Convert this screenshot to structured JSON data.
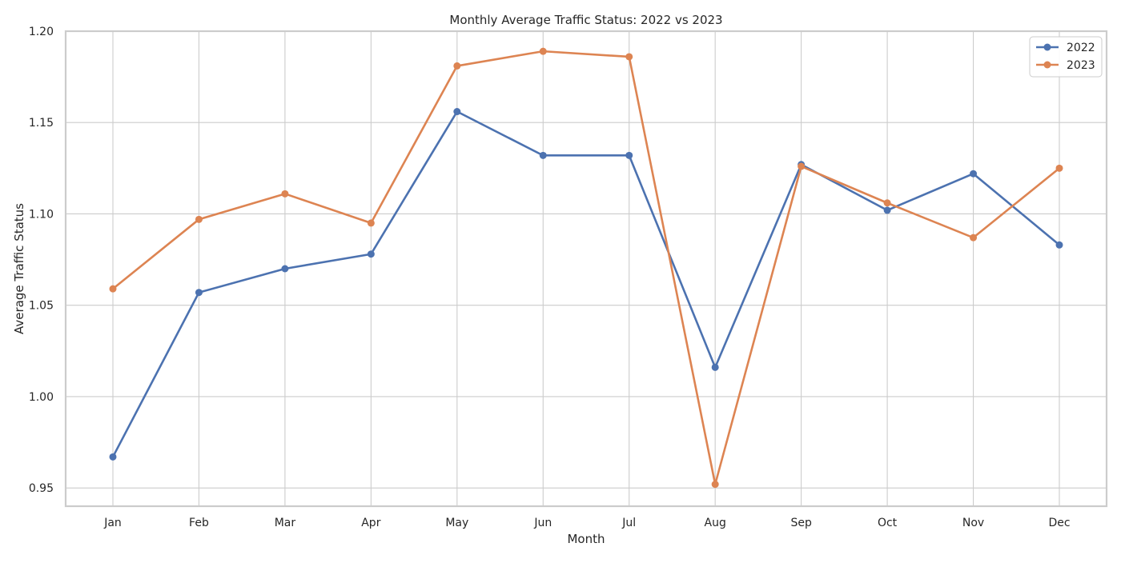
{
  "chart_data": {
    "type": "line",
    "title": "Monthly Average Traffic Status: 2022 vs 2023",
    "xlabel": "Month",
    "ylabel": "Average Traffic Status",
    "categories": [
      "Jan",
      "Feb",
      "Mar",
      "Apr",
      "May",
      "Jun",
      "Jul",
      "Aug",
      "Sep",
      "Oct",
      "Nov",
      "Dec"
    ],
    "ylim": [
      0.94,
      1.2
    ],
    "yticks": [
      "0.95",
      "1.00",
      "1.05",
      "1.10",
      "1.15",
      "1.20"
    ],
    "grid": true,
    "legend_position": "top-right",
    "series": [
      {
        "name": "2022",
        "color": "#4c72b0",
        "values": [
          0.967,
          1.057,
          1.07,
          1.078,
          1.156,
          1.132,
          1.132,
          1.016,
          1.127,
          1.102,
          1.122,
          1.083
        ]
      },
      {
        "name": "2023",
        "color": "#dd8452",
        "values": [
          1.059,
          1.097,
          1.111,
          1.095,
          1.181,
          1.189,
          1.186,
          0.952,
          1.126,
          1.106,
          1.087,
          1.125
        ]
      }
    ]
  }
}
